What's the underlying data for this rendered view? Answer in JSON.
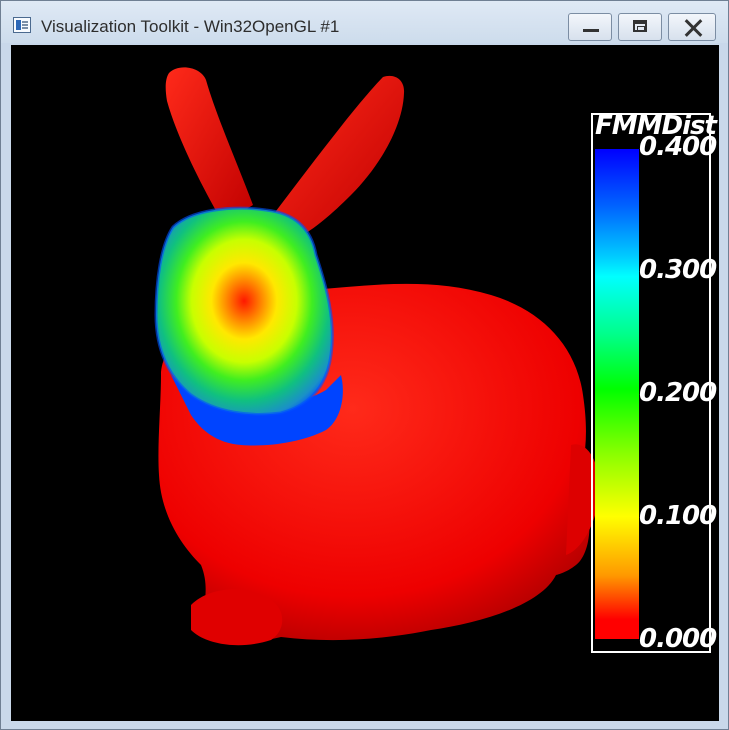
{
  "window": {
    "title": "Visualization Toolkit - Win32OpenGL #1",
    "icon": "vtk-window-icon",
    "controls": {
      "minimize_icon": "minimize-icon",
      "maximize_icon": "maximize-icon",
      "close_icon": "close-icon"
    }
  },
  "scene": {
    "background_color": "#000000",
    "surface_color": "#ff0000"
  },
  "scalar_bar": {
    "title": "FMMDist",
    "labels": [
      "0.400",
      "0.300",
      "0.200",
      "0.100",
      "0.000"
    ],
    "range": [
      0.0,
      0.4
    ],
    "colormap": [
      "#0000ff",
      "#00ffff",
      "#00ff00",
      "#ffff00",
      "#ff0000"
    ]
  }
}
